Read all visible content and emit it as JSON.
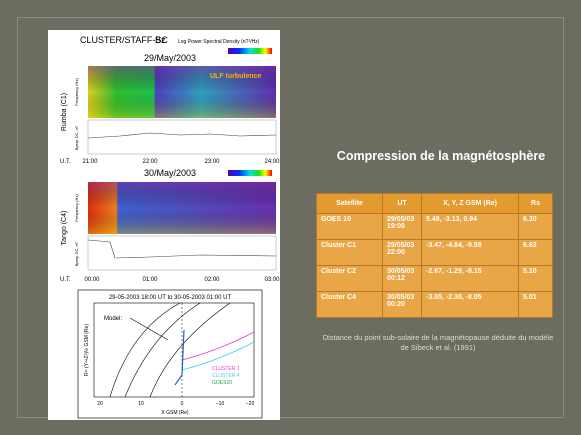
{
  "slide": {
    "title": "Compression de la magnétosphère",
    "figure": {
      "instrument": "CLUSTER/STAFF-SC",
      "component": "Bz",
      "colorbar_label": "Log Power Spectral Density (nT²/Hz)",
      "panel1": {
        "date": "29/May/2003",
        "annotation": "ULF turbulence",
        "spacecraft": "Rumba (C1)",
        "freq_label": "Frequency (Hz)",
        "b_label": "Bperp DC, nT",
        "ut_label": "U.T.",
        "times": [
          "21:00",
          "22:00",
          "23:00",
          "24:00"
        ]
      },
      "panel2": {
        "date": "30/May/2003",
        "spacecraft": "Tango (C4)",
        "freq_label": "Frequency (Hz)",
        "b_label": "Bperp DC, nT",
        "ut_label": "U.T.",
        "times": [
          "00:00",
          "01:00",
          "02:00",
          "03:00"
        ]
      },
      "orbit": {
        "title": "29-05-2003 18:00 UT to 30-05-2003 01:00 UT",
        "model": "Model:",
        "ylabel": "R= (Y²+Z²)½ GSM (Re)",
        "xlabel": "X GSM (Re)",
        "xticks": [
          "20",
          "10",
          "0",
          "−10",
          "−20"
        ],
        "legend": [
          "CLUSTER 1",
          "CLUSTER 4",
          "GOES10"
        ]
      }
    },
    "table": {
      "header": [
        "Satellite",
        "UT",
        "X, Y, Z GSM (Re)",
        "Rs"
      ],
      "rows": [
        [
          "GOES 10",
          "29/05/0319:00",
          "5.49, -3.13, 0.94",
          "6.30"
        ],
        [
          "Cluster C1",
          "29/05/0322:00",
          "-3.47, -4.84, -9.59",
          "6.63"
        ],
        [
          "Cluster C2",
          "30/05/0300:12",
          "-2.67, -1.29, -8.15",
          "5.10"
        ],
        [
          "Cluster C4",
          "30/05/0300:20",
          "-3.05, -2.30, -8.05",
          "5.01"
        ]
      ]
    },
    "caption": "Distance du point sub-solaire de la magnétopause déduite du modèle de Sibeck et al. (1991)"
  }
}
